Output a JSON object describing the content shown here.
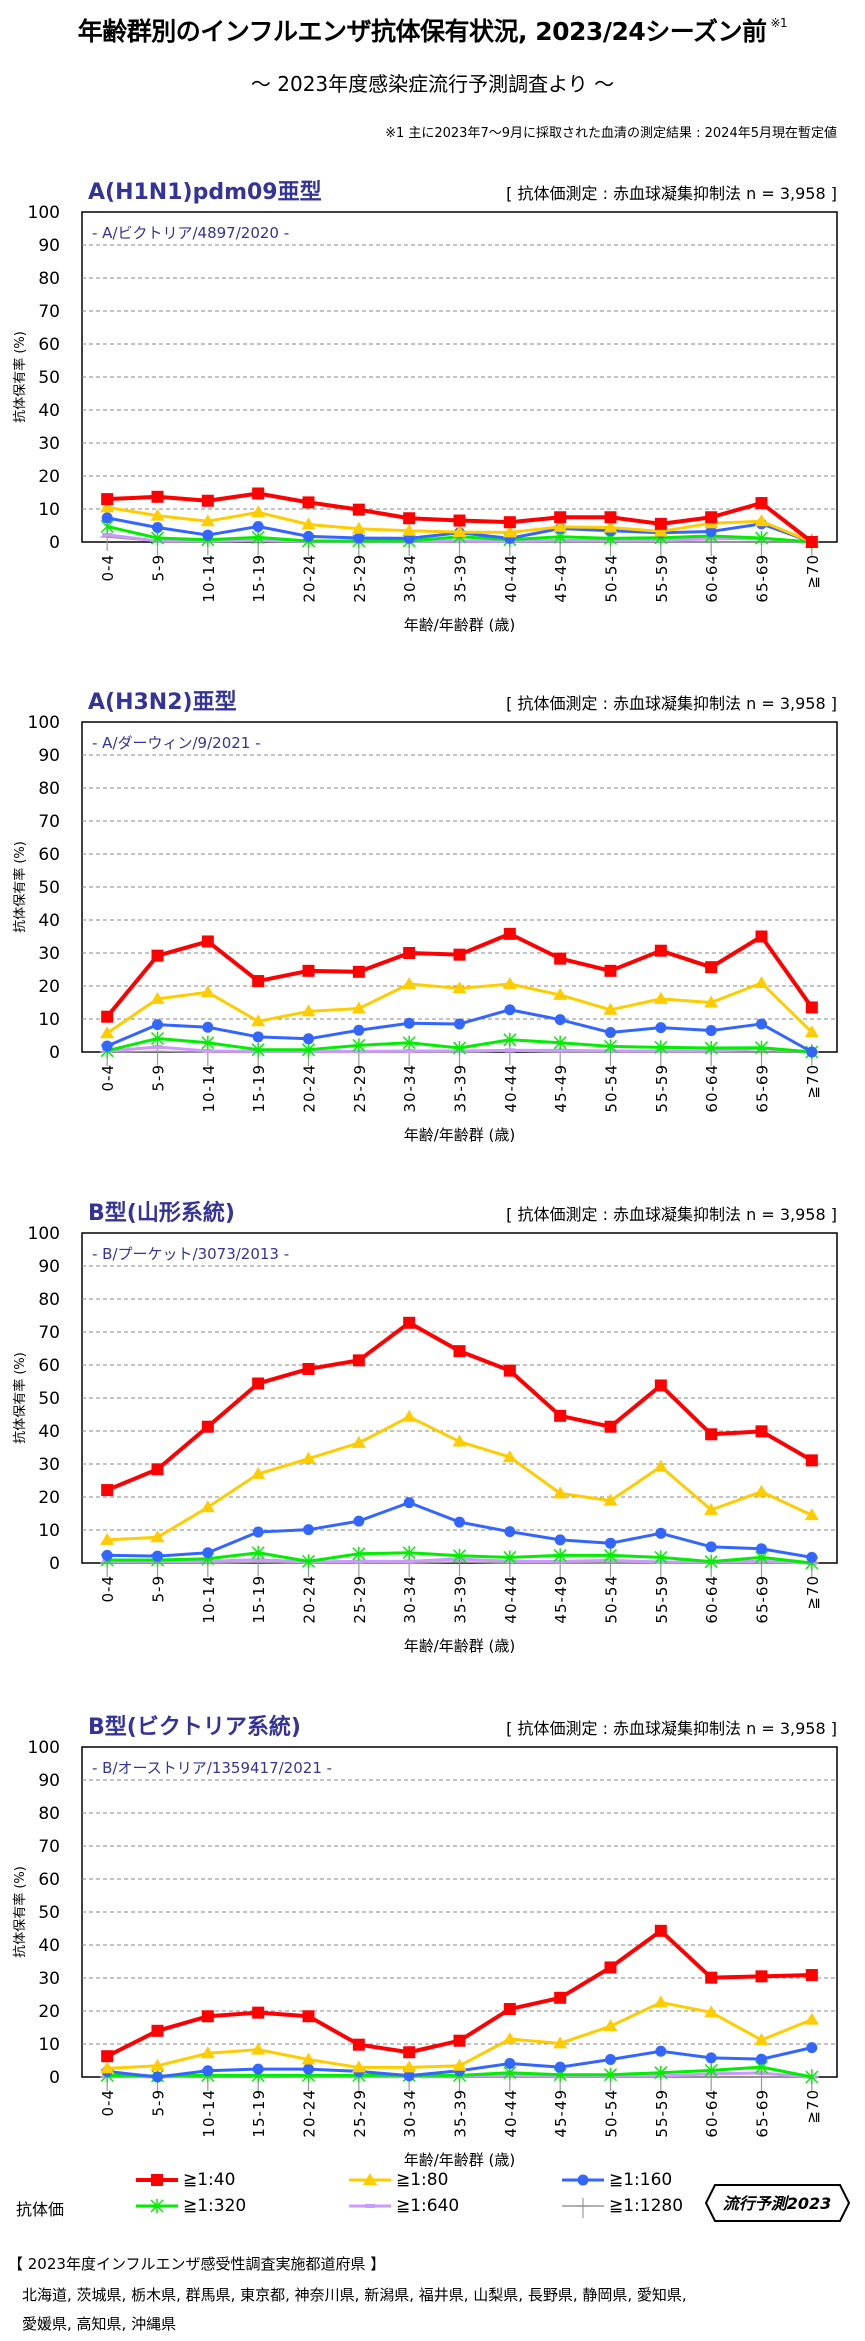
{
  "header": {
    "title": "年齢群別のインフルエンザ抗体保有状況, 2023/24シーズン前",
    "title_note_mark": "※1",
    "subtitle": "～ 2023年度感染症流行予測調査より ～",
    "note": "※1  主に2023年7～9月に採取された血清の測定結果 : 2024年5月現在暫定値"
  },
  "colors": {
    "title": "#333399",
    "s40": "#ff0000",
    "s80": "#ffcc00",
    "s160": "#3366ff",
    "s320": "#00ee00",
    "s640": "#cc99ff",
    "s1280": "#999999"
  },
  "chart_data": [
    {
      "type": "line",
      "title": "A(H1N1)pdm09亜型",
      "method": "[ 抗体価測定 : 赤血球凝集抑制法 n = 3,958 ]",
      "strain": "- A/ビクトリア/4897/2020 -",
      "ylabel": "抗体保有率 (%)",
      "xlabel": "年齢/年齢群 (歳)",
      "ylim": [
        0,
        100
      ],
      "yticks": [
        "0",
        "10",
        "20",
        "30",
        "40",
        "50",
        "60",
        "70",
        "80",
        "90",
        "100"
      ],
      "grid": true,
      "categories": [
        "0-4",
        "5-9",
        "10-14",
        "15-19",
        "20-24",
        "25-29",
        "30-34",
        "35-39",
        "40-44",
        "45-49",
        "50-54",
        "55-59",
        "60-64",
        "65-69",
        "≧70"
      ],
      "series": [
        {
          "name": "≧1:40",
          "marker": "square",
          "values": [
            13.0,
            13.7,
            12.5,
            14.7,
            12.0,
            9.8,
            7.2,
            6.5,
            6.0,
            7.5,
            7.5,
            5.5,
            7.5,
            11.8,
            0
          ]
        },
        {
          "name": "≧1:80",
          "marker": "triangle",
          "values": [
            10.5,
            8.0,
            6.3,
            9.0,
            5.3,
            4.0,
            3.4,
            3.0,
            2.9,
            4.6,
            4.4,
            3.2,
            5.7,
            6.3,
            0
          ]
        },
        {
          "name": "≧1:160",
          "marker": "circle",
          "values": [
            7.3,
            4.4,
            2.1,
            4.7,
            1.7,
            1.2,
            1.1,
            2.8,
            1.1,
            4.1,
            3.4,
            2.8,
            3.2,
            5.5,
            0
          ]
        },
        {
          "name": "≧1:320",
          "marker": "asterisk",
          "values": [
            4.7,
            1.2,
            0.7,
            1.4,
            0.3,
            0.3,
            0.3,
            1.6,
            0.7,
            1.6,
            1.1,
            1.3,
            1.8,
            1.2,
            0
          ]
        },
        {
          "name": "≧1:640",
          "marker": "dash",
          "values": [
            2.2,
            0.3,
            0.3,
            0.5,
            0.2,
            0.2,
            0.2,
            0.3,
            0.2,
            0.5,
            0.5,
            0.5,
            1.0,
            1.0,
            0
          ]
        },
        {
          "name": "≧1:1280",
          "marker": "plus",
          "values": [
            1.5,
            0.2,
            0.1,
            0.2,
            0,
            0,
            0,
            0,
            0,
            0,
            0,
            0,
            0,
            0,
            0
          ]
        }
      ]
    },
    {
      "type": "line",
      "title": "A(H3N2)亜型",
      "method": "[ 抗体価測定 : 赤血球凝集抑制法 n = 3,958 ]",
      "strain": "- A/ダーウィン/9/2021 -",
      "ylabel": "抗体保有率 (%)",
      "xlabel": "年齢/年齢群 (歳)",
      "ylim": [
        0,
        100
      ],
      "yticks": [
        "0",
        "10",
        "20",
        "30",
        "40",
        "50",
        "60",
        "70",
        "80",
        "90",
        "100"
      ],
      "grid": true,
      "categories": [
        "0-4",
        "5-9",
        "10-14",
        "15-19",
        "20-24",
        "25-29",
        "30-34",
        "35-39",
        "40-44",
        "45-49",
        "50-54",
        "55-59",
        "60-64",
        "65-69",
        "≧70"
      ],
      "series": [
        {
          "name": "≧1:40",
          "marker": "square",
          "values": [
            10.7,
            29.2,
            33.5,
            21.5,
            24.6,
            24.3,
            30.0,
            29.5,
            35.8,
            28.3,
            24.6,
            30.7,
            25.7,
            35.0,
            13.5
          ]
        },
        {
          "name": "≧1:80",
          "marker": "triangle",
          "values": [
            5.7,
            16.1,
            18.1,
            9.3,
            12.3,
            13.2,
            20.6,
            19.3,
            20.6,
            17.3,
            12.8,
            16.1,
            15.0,
            20.9,
            6.0
          ]
        },
        {
          "name": "≧1:160",
          "marker": "circle",
          "values": [
            1.8,
            8.3,
            7.5,
            4.6,
            4.0,
            6.6,
            8.7,
            8.5,
            12.8,
            9.8,
            5.9,
            7.4,
            6.5,
            8.5,
            0
          ]
        },
        {
          "name": "≧1:320",
          "marker": "asterisk",
          "values": [
            0.4,
            4.1,
            2.8,
            0.7,
            0.7,
            2.0,
            2.8,
            1.2,
            3.7,
            2.8,
            1.7,
            1.4,
            1.2,
            1.3,
            0
          ]
        },
        {
          "name": "≧1:640",
          "marker": "dash",
          "values": [
            0.3,
            1.5,
            0.3,
            0.2,
            0.2,
            0.2,
            0.3,
            0.3,
            0.5,
            0.5,
            0.3,
            0.3,
            0.3,
            1.0,
            0
          ]
        },
        {
          "name": "≧1:1280",
          "marker": "plus",
          "values": [
            0,
            0.2,
            0,
            0,
            0,
            0,
            0,
            0,
            0.3,
            0,
            0,
            0,
            0,
            0,
            0
          ]
        }
      ]
    },
    {
      "type": "line",
      "title": "B型(山形系統)",
      "method": "[ 抗体価測定 : 赤血球凝集抑制法 n = 3,958 ]",
      "strain": "- B/プーケット/3073/2013 -",
      "ylabel": "抗体保有率 (%)",
      "xlabel": "年齢/年齢群 (歳)",
      "ylim": [
        0,
        100
      ],
      "yticks": [
        "0",
        "10",
        "20",
        "30",
        "40",
        "50",
        "60",
        "70",
        "80",
        "90",
        "100"
      ],
      "grid": true,
      "categories": [
        "0-4",
        "5-9",
        "10-14",
        "15-19",
        "20-24",
        "25-29",
        "30-34",
        "35-39",
        "40-44",
        "45-49",
        "50-54",
        "55-59",
        "60-64",
        "65-69",
        "≧70"
      ],
      "series": [
        {
          "name": "≧1:40",
          "marker": "square",
          "values": [
            22.1,
            28.4,
            41.3,
            54.4,
            58.8,
            61.4,
            72.8,
            64.2,
            58.3,
            44.6,
            41.3,
            53.8,
            39.0,
            39.9,
            31.1
          ]
        },
        {
          "name": "≧1:80",
          "marker": "triangle",
          "values": [
            7.0,
            7.8,
            16.9,
            27.0,
            31.6,
            36.4,
            44.3,
            36.8,
            32.1,
            21.1,
            18.9,
            29.2,
            16.1,
            21.6,
            14.5
          ]
        },
        {
          "name": "≧1:160",
          "marker": "circle",
          "values": [
            2.3,
            2.1,
            3.1,
            9.4,
            10.1,
            12.7,
            18.3,
            12.4,
            9.5,
            7.0,
            6.0,
            9.0,
            4.9,
            4.3,
            1.7
          ]
        },
        {
          "name": "≧1:320",
          "marker": "asterisk",
          "values": [
            0.9,
            0.9,
            1.3,
            3.1,
            0.5,
            2.8,
            3.1,
            2.2,
            1.7,
            2.3,
            2.3,
            1.7,
            0.4,
            1.7,
            0
          ]
        },
        {
          "name": "≧1:640",
          "marker": "dash",
          "values": [
            0.5,
            0.5,
            0.5,
            1.0,
            0.3,
            0.5,
            0.5,
            1.2,
            0.5,
            0.5,
            0.8,
            0.3,
            0.3,
            0.5,
            0
          ]
        },
        {
          "name": "≧1:1280",
          "marker": "plus",
          "values": [
            0,
            0,
            0,
            0.2,
            0,
            0,
            0,
            0.3,
            0,
            0,
            0,
            0,
            0,
            0,
            0
          ]
        }
      ]
    },
    {
      "type": "line",
      "title": "B型(ビクトリア系統)",
      "method": "[ 抗体価測定 : 赤血球凝集抑制法 n = 3,958 ]",
      "strain": "- B/オーストリア/1359417/2021 -",
      "ylabel": "抗体保有率 (%)",
      "xlabel": "年齢/年齢群 (歳)",
      "ylim": [
        0,
        100
      ],
      "yticks": [
        "0",
        "10",
        "20",
        "30",
        "40",
        "50",
        "60",
        "70",
        "80",
        "90",
        "100"
      ],
      "grid": true,
      "categories": [
        "0-4",
        "5-9",
        "10-14",
        "15-19",
        "20-24",
        "25-29",
        "30-34",
        "35-39",
        "40-44",
        "45-49",
        "50-54",
        "55-59",
        "60-64",
        "65-69",
        "≧70"
      ],
      "series": [
        {
          "name": "≧1:40",
          "marker": "square",
          "values": [
            6.3,
            14.0,
            18.4,
            19.5,
            18.4,
            9.8,
            7.5,
            11.0,
            20.6,
            24.0,
            33.2,
            44.3,
            30.1,
            30.5,
            30.9
          ]
        },
        {
          "name": "≧1:80",
          "marker": "triangle",
          "values": [
            2.6,
            3.4,
            7.2,
            8.3,
            5.3,
            2.9,
            2.9,
            3.4,
            11.5,
            10.2,
            15.4,
            22.6,
            19.6,
            11.2,
            17.4
          ]
        },
        {
          "name": "≧1:160",
          "marker": "circle",
          "values": [
            1.7,
            0,
            1.9,
            2.4,
            2.4,
            1.7,
            0.4,
            1.9,
            4.1,
            3.0,
            5.3,
            7.8,
            5.8,
            5.4,
            8.9
          ]
        },
        {
          "name": "≧1:320",
          "marker": "asterisk",
          "values": [
            0.5,
            0.3,
            0.5,
            0.5,
            0.5,
            0.5,
            0.5,
            0.5,
            1.3,
            0.7,
            0.7,
            1.3,
            2.0,
            3.0,
            0
          ]
        },
        {
          "name": "≧1:640",
          "marker": "dash",
          "values": [
            0.3,
            0,
            0.3,
            0.3,
            0.2,
            0.2,
            0.2,
            0.3,
            0.3,
            0.3,
            0.3,
            0.3,
            1.0,
            1.2,
            0
          ]
        },
        {
          "name": "≧1:1280",
          "marker": "plus",
          "values": [
            0,
            0,
            0,
            0,
            0,
            0,
            0,
            0,
            0,
            0,
            0,
            0,
            0,
            0,
            0
          ]
        }
      ]
    }
  ],
  "legend": {
    "title": "抗体価",
    "items": [
      {
        "label": "≧1:40",
        "marker": "square"
      },
      {
        "label": "≧1:80",
        "marker": "triangle"
      },
      {
        "label": "≧1:160",
        "marker": "circle"
      },
      {
        "label": "≧1:320",
        "marker": "asterisk"
      },
      {
        "label": "≧1:640",
        "marker": "dash"
      },
      {
        "label": "≧1:1280",
        "marker": "plus"
      }
    ],
    "badge": "流行予測2023"
  },
  "footer": {
    "heading": "【 2023年度インフルエンザ感受性調査実施都道府県 】",
    "line1": "北海道,  茨城県,  栃木県,  群馬県,  東京都,  神奈川県,  新潟県,  福井県,  山梨県,  長野県,  静岡県,  愛知県,",
    "line2": "愛媛県,  高知県,  沖縄県"
  }
}
